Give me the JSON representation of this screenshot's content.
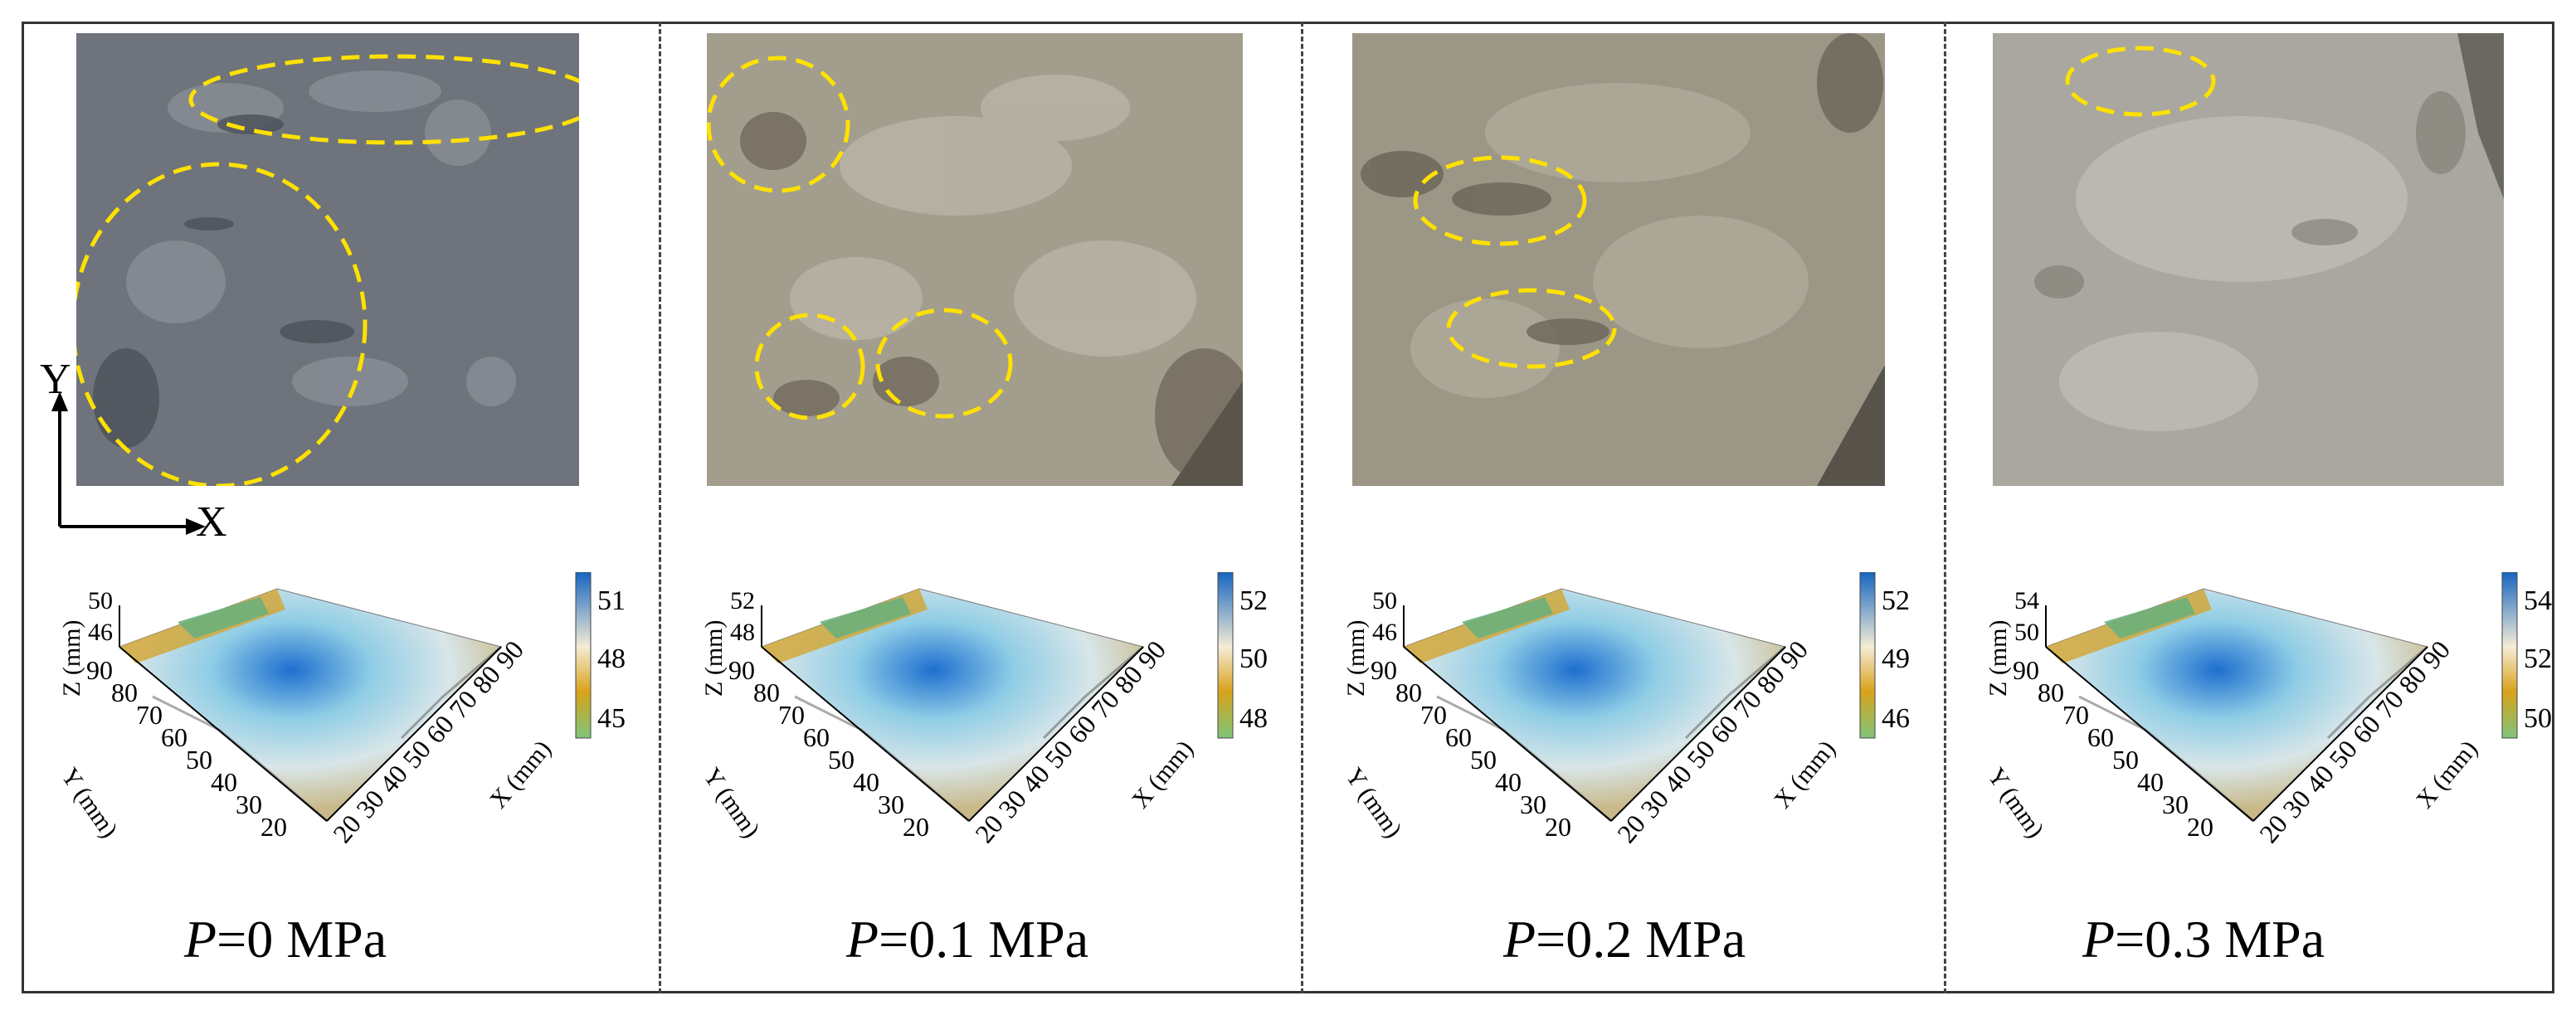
{
  "figure": {
    "panels": [
      {
        "pressure_symbol": "P",
        "pressure_value": "=0 MPa",
        "z_ticks": [
          "50",
          "46"
        ],
        "colorbar_ticks": [
          "51",
          "48",
          "45"
        ],
        "photo_tone": "#6e737c",
        "photo_tone_dark": "#4c5159",
        "photo_tone_light": "#9a9fa5"
      },
      {
        "pressure_symbol": "P",
        "pressure_value": "=0.1 MPa",
        "z_ticks": [
          "52",
          "48"
        ],
        "colorbar_ticks": [
          "52",
          "50",
          "48"
        ],
        "photo_tone": "#a39d8e",
        "photo_tone_dark": "#736c5f",
        "photo_tone_light": "#c4bfb2"
      },
      {
        "pressure_symbol": "P",
        "pressure_value": "=0.2 MPa",
        "z_ticks": [
          "50",
          "46"
        ],
        "colorbar_ticks": [
          "52",
          "49",
          "46"
        ],
        "photo_tone": "#9c9686",
        "photo_tone_dark": "#6b6557",
        "photo_tone_light": "#bcb6a8"
      },
      {
        "pressure_symbol": "P",
        "pressure_value": "=0.3 MPa",
        "z_ticks": [
          "54",
          "50"
        ],
        "colorbar_ticks": [
          "54",
          "52",
          "50"
        ],
        "photo_tone": "#a9a79f",
        "photo_tone_dark": "#7d7b73",
        "photo_tone_light": "#c9c7bf"
      }
    ],
    "axes": {
      "photo_x": "X",
      "photo_y": "Y",
      "x_label": "X (mm)",
      "y_label": "Y (mm)",
      "z_label": "Z (mm)",
      "x_ticks": [
        "20",
        "30",
        "40",
        "50",
        "60",
        "70",
        "80",
        "90"
      ],
      "y_ticks": [
        "20",
        "30",
        "40",
        "50",
        "60",
        "70",
        "80",
        "90"
      ]
    },
    "colors": {
      "highlight_ellipse": "#ffe100",
      "colorbar_top": "#1565c0",
      "colorbar_mid": "#f4ecd6",
      "colorbar_gold": "#d9a21b",
      "colorbar_bottom": "#7fc47a"
    }
  }
}
